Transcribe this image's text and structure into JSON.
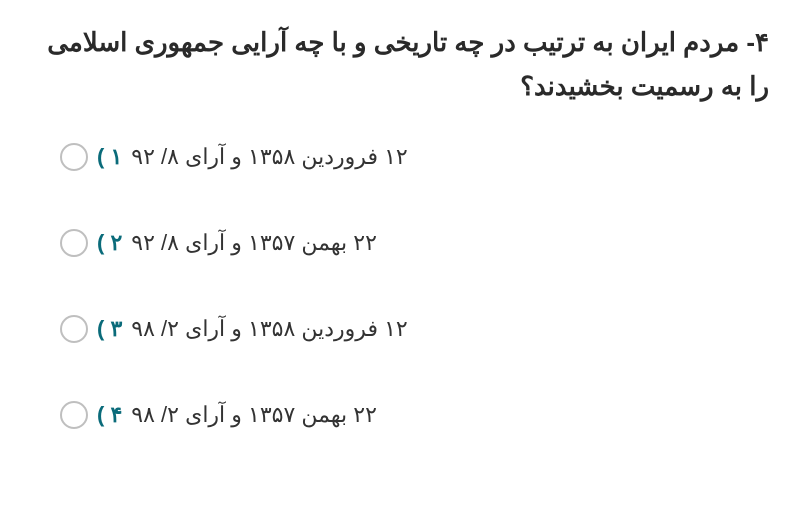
{
  "question": {
    "number": "۴-",
    "text": "مردم ایران به ترتیب در چه تاریخی و با چه آرایی جمهوری اسلامی را به رسمیت بخشیدند؟"
  },
  "options": [
    {
      "num": "۱ )",
      "text": "۱۲ فروردین ۱۳۵۸ و آرای ۸/ ۹۲"
    },
    {
      "num": "۲ )",
      "text": "۲۲ بهمن ۱۳۵۷ و آرای ۸/ ۹۲"
    },
    {
      "num": "۳ )",
      "text": "۱۲ فروردین ۱۳۵۸ و آرای ۲/ ۹۸"
    },
    {
      "num": "۴ )",
      "text": "۲۲ بهمن ۱۳۵۷ و آرای ۲/ ۹۸"
    }
  ],
  "colors": {
    "text": "#2a2a2a",
    "option_text": "#333333",
    "option_num": "#0a6b7a",
    "radio_border": "#bfbfbf",
    "background": "#ffffff"
  },
  "typography": {
    "question_fontsize": 26,
    "question_weight": 700,
    "option_fontsize": 22,
    "family": "Tahoma"
  }
}
